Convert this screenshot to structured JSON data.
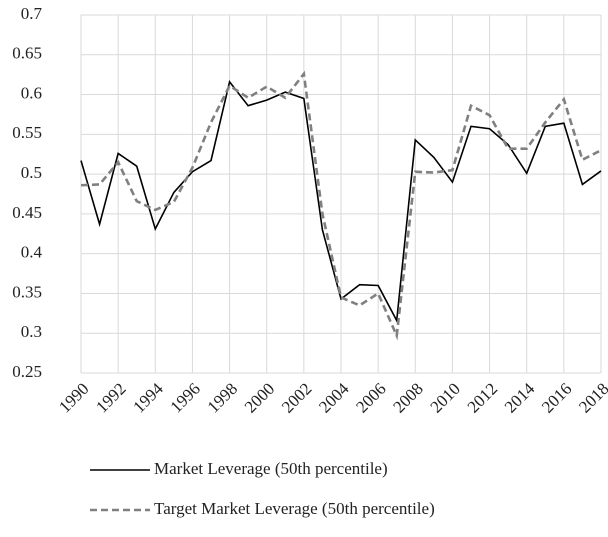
{
  "chart_data": {
    "type": "line",
    "x": [
      1990,
      1991,
      1992,
      1993,
      1994,
      1995,
      1996,
      1997,
      1998,
      1999,
      2000,
      2001,
      2002,
      2003,
      2004,
      2005,
      2006,
      2007,
      2008,
      2009,
      2010,
      2011,
      2012,
      2013,
      2014,
      2015,
      2016,
      2017,
      2018
    ],
    "series": [
      {
        "name": "Market Leverage (50th percentile)",
        "color": "#000000",
        "dash": "solid",
        "values": [
          0.517,
          0.437,
          0.526,
          0.51,
          0.431,
          0.477,
          0.503,
          0.517,
          0.616,
          0.586,
          0.593,
          0.603,
          0.595,
          0.43,
          0.343,
          0.361,
          0.36,
          0.316,
          0.543,
          0.521,
          0.49,
          0.56,
          0.557,
          0.537,
          0.501,
          0.56,
          0.564,
          0.487,
          0.504
        ]
      },
      {
        "name": "Target Market Leverage (50th percentile)",
        "color": "#808080",
        "dash": "dashed",
        "values": [
          0.486,
          0.487,
          0.515,
          0.466,
          0.455,
          0.465,
          0.508,
          0.565,
          0.611,
          0.596,
          0.61,
          0.596,
          0.626,
          0.45,
          0.345,
          0.335,
          0.35,
          0.297,
          0.503,
          0.502,
          0.505,
          0.586,
          0.574,
          0.532,
          0.532,
          0.565,
          0.594,
          0.518,
          0.53
        ]
      }
    ],
    "xlim": [
      1990,
      2018
    ],
    "xticks": [
      1990,
      1992,
      1994,
      1996,
      1998,
      2000,
      2002,
      2004,
      2006,
      2008,
      2010,
      2012,
      2014,
      2016,
      2018
    ],
    "ylim": [
      0.25,
      0.7
    ],
    "yticks": [
      0.25,
      0.3,
      0.35,
      0.4,
      0.45,
      0.5,
      0.55,
      0.6,
      0.65,
      0.7
    ],
    "grid": true,
    "legend": "bottom"
  }
}
